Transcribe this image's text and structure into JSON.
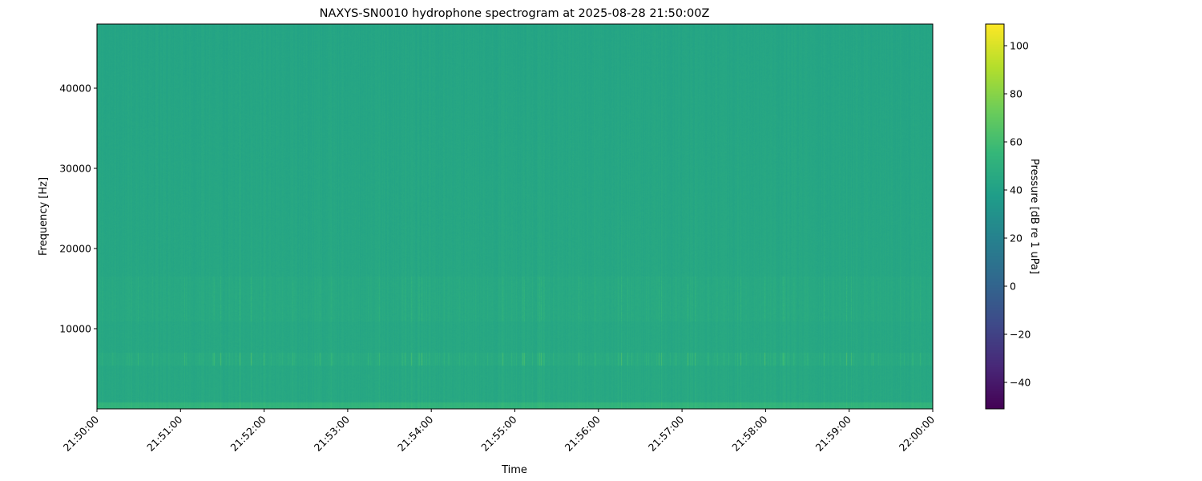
{
  "chart_data": {
    "type": "heatmap",
    "title": "NAXYS-SN0010 hydrophone spectrogram at 2025-08-28 21:50:00Z",
    "xlabel": "Time",
    "ylabel": "Frequency [Hz]",
    "xlim": [
      "21:50:00",
      "22:00:00"
    ],
    "ylim": [
      0,
      48000
    ],
    "x_ticks": [
      "21:50:00",
      "21:51:00",
      "21:52:00",
      "21:53:00",
      "21:54:00",
      "21:55:00",
      "21:56:00",
      "21:57:00",
      "21:58:00",
      "21:59:00",
      "22:00:00"
    ],
    "y_ticks": [
      10000,
      20000,
      30000,
      40000
    ],
    "colorbar": {
      "label": "Pressure [dB re 1 uPa]",
      "colormap": "viridis",
      "range": [
        -51,
        109
      ],
      "ticks": [
        -40,
        -20,
        0,
        20,
        40,
        60,
        80,
        100
      ]
    },
    "features": {
      "background_level_db": 45,
      "tonal_band_hz": [
        5500,
        7000
      ],
      "broadband_band_hz": [
        11000,
        16500
      ],
      "low_frequency_band_hz": [
        0,
        800
      ]
    }
  }
}
